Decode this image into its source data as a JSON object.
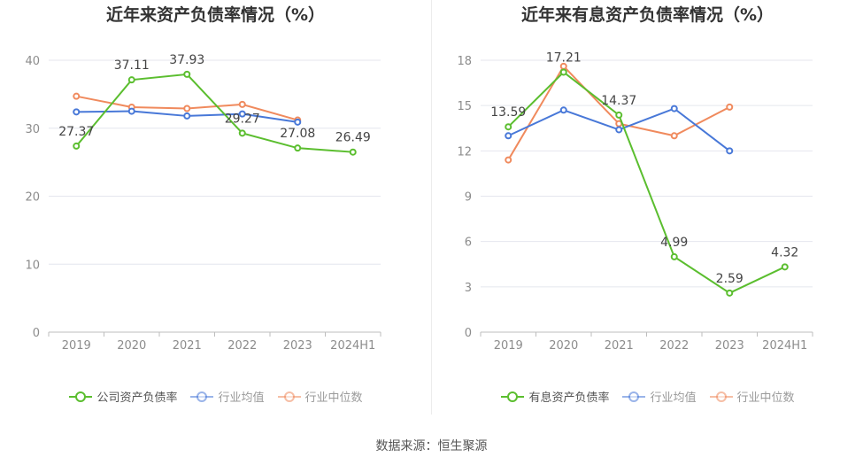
{
  "colors": {
    "company": "#5bbe2f",
    "avg": "#4878d8",
    "median": "#f08a5d",
    "grid": "#e4e6ee",
    "axis_text": "#8c8c8c",
    "label_text": "#444444"
  },
  "legend_icon": "circle-line-marker",
  "source": "数据来源：恒生聚源",
  "chart_data": [
    {
      "type": "line",
      "title": "近年来资产负债率情况（%）",
      "categories": [
        "2019",
        "2020",
        "2021",
        "2022",
        "2023",
        "2024H1"
      ],
      "ylim": [
        0,
        40
      ],
      "yticks": [
        0,
        10,
        20,
        30,
        40
      ],
      "grid": true,
      "legend_position": "bottom",
      "series": [
        {
          "name": "公司资产负债率",
          "key": "company",
          "values": [
            27.37,
            37.11,
            37.93,
            29.27,
            27.08,
            26.49
          ],
          "labels": [
            "27.37",
            "37.11",
            "37.93",
            "29.27",
            "27.08",
            "26.49"
          ]
        },
        {
          "name": "行业均值",
          "key": "avg",
          "values": [
            32.4,
            32.5,
            31.8,
            32.1,
            30.9,
            null
          ]
        },
        {
          "name": "行业中位数",
          "key": "median",
          "values": [
            34.7,
            33.1,
            32.9,
            33.5,
            31.2,
            null
          ]
        }
      ]
    },
    {
      "type": "line",
      "title": "近年来有息资产负债率情况（%）",
      "categories": [
        "2019",
        "2020",
        "2021",
        "2022",
        "2023",
        "2024H1"
      ],
      "ylim": [
        0,
        18
      ],
      "yticks": [
        0,
        3,
        6,
        9,
        12,
        15,
        18
      ],
      "grid": true,
      "legend_position": "bottom",
      "series": [
        {
          "name": "有息资产负债率",
          "key": "company",
          "values": [
            13.59,
            17.21,
            14.37,
            4.99,
            2.59,
            4.32
          ],
          "labels": [
            "13.59",
            "17.21",
            "14.37",
            "4.99",
            "2.59",
            "4.32"
          ]
        },
        {
          "name": "行业均值",
          "key": "avg",
          "values": [
            13.0,
            14.7,
            13.4,
            14.8,
            12.0,
            null
          ]
        },
        {
          "name": "行业中位数",
          "key": "median",
          "values": [
            11.4,
            17.6,
            13.8,
            13.0,
            14.9,
            null
          ]
        }
      ]
    }
  ]
}
